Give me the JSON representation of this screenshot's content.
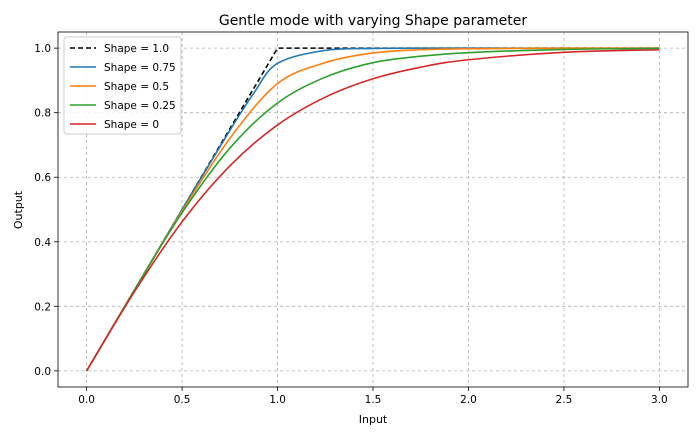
{
  "chart_data": {
    "type": "line",
    "title": "Gentle mode with varying Shape parameter",
    "xlabel": "Input",
    "ylabel": "Output",
    "xlim": [
      -0.15,
      3.15
    ],
    "ylim": [
      -0.05,
      1.05
    ],
    "xticks": [
      "0.0",
      "0.5",
      "1.0",
      "1.5",
      "2.0",
      "2.5",
      "3.0"
    ],
    "yticks": [
      "0.0",
      "0.2",
      "0.4",
      "0.6",
      "0.8",
      "1.0"
    ],
    "grid": true,
    "legend_position": "top-left",
    "series": [
      {
        "name": "Shape = 1.0",
        "color": "#000000",
        "dashed": true,
        "x": [
          0,
          1,
          3
        ],
        "y": [
          0,
          1,
          1
        ]
      },
      {
        "name": "Shape = 0.75",
        "color": "#1f77b4",
        "dashed": false,
        "x": [
          0,
          0.25,
          0.5,
          0.75,
          0.875,
          1,
          1.25,
          1.5,
          1.75,
          2,
          2.5,
          3
        ],
        "y": [
          0,
          0.25,
          0.5,
          0.745,
          0.86,
          0.953,
          0.993,
          0.999,
          1,
          1,
          1,
          1
        ]
      },
      {
        "name": "Shape = 0.5",
        "color": "#ff7f0e",
        "dashed": false,
        "x": [
          0,
          0.25,
          0.5,
          0.75,
          1,
          1.25,
          1.5,
          1.75,
          2,
          2.5,
          3
        ],
        "y": [
          0,
          0.25,
          0.495,
          0.72,
          0.89,
          0.955,
          0.985,
          0.995,
          0.998,
          1,
          1
        ]
      },
      {
        "name": "Shape = 0.25",
        "color": "#2ca02c",
        "dashed": false,
        "x": [
          0,
          0.25,
          0.5,
          0.75,
          1,
          1.25,
          1.5,
          1.75,
          2,
          2.5,
          3
        ],
        "y": [
          0,
          0.25,
          0.49,
          0.69,
          0.83,
          0.91,
          0.955,
          0.975,
          0.986,
          0.996,
          0.999
        ]
      },
      {
        "name": "Shape = 0",
        "color": "#d62728",
        "dashed": false,
        "x": [
          0,
          0.25,
          0.5,
          0.75,
          1,
          1.25,
          1.5,
          1.75,
          2,
          2.5,
          3
        ],
        "y": [
          0,
          0.245,
          0.462,
          0.635,
          0.762,
          0.848,
          0.905,
          0.941,
          0.964,
          0.987,
          0.995
        ]
      }
    ]
  }
}
